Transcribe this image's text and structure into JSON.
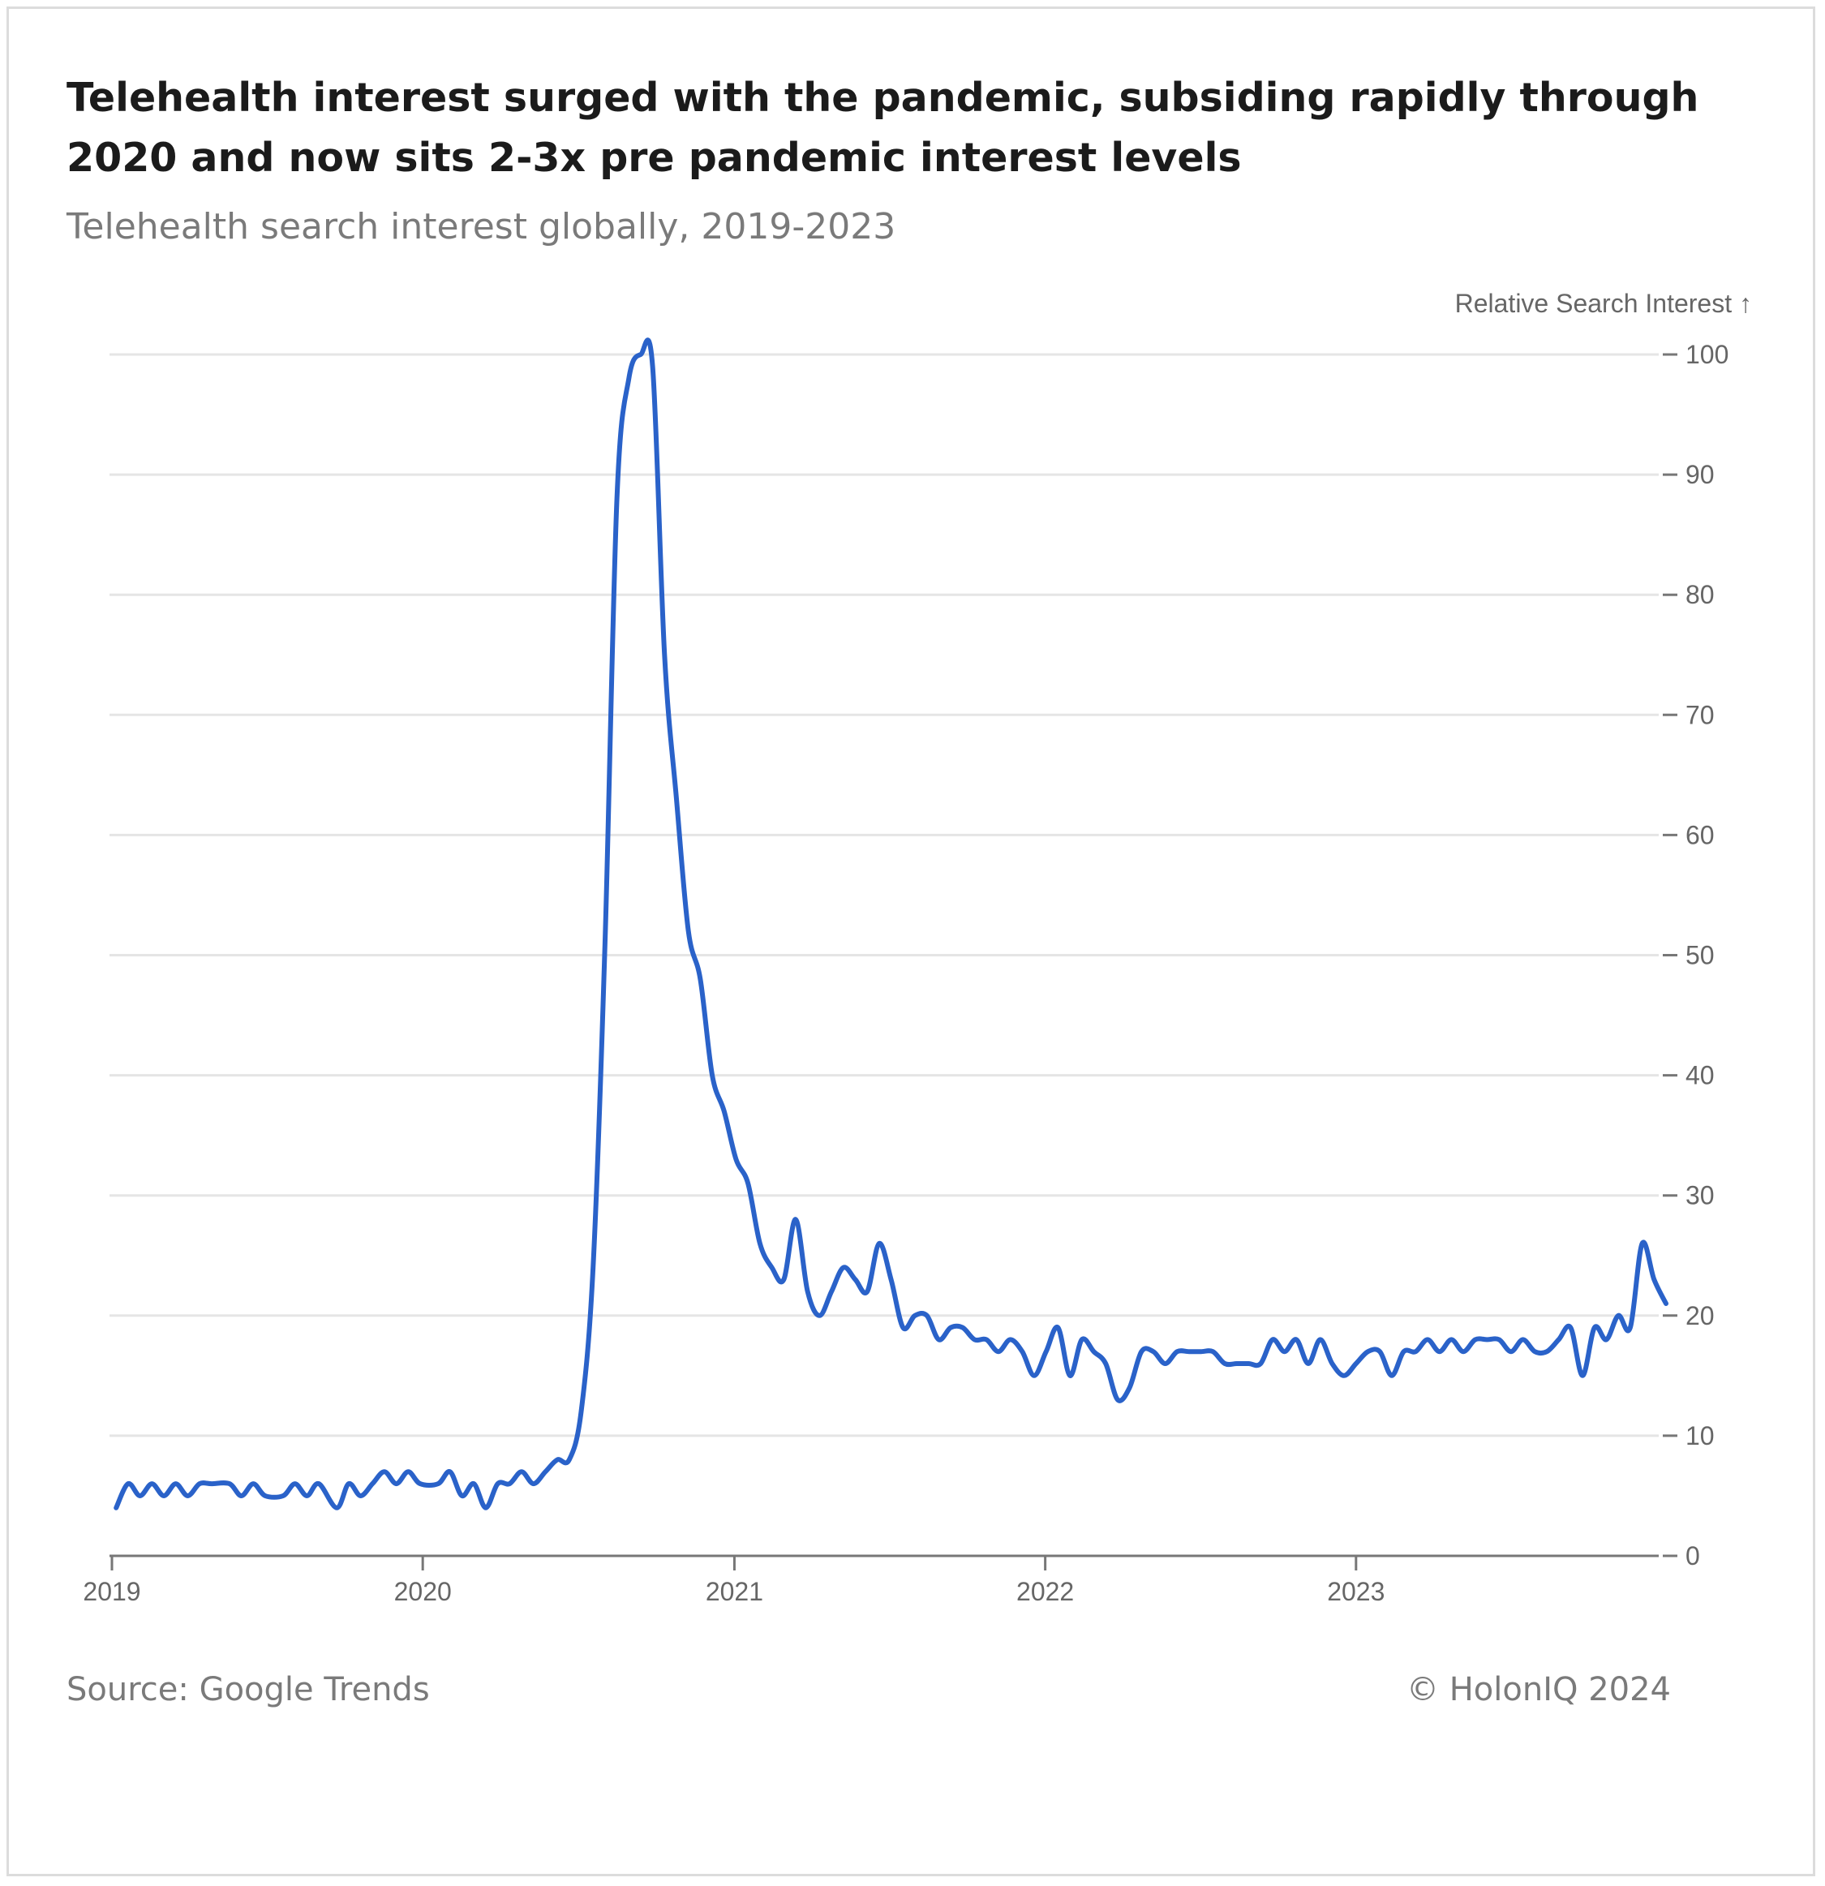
{
  "title": "Telehealth interest surged with the pandemic, subsiding rapidly through 2020 and now sits 2-3x pre pandemic interest levels",
  "subtitle": "Telehealth search interest globally, 2019-2023",
  "footer": {
    "source": "Source: Google Trends",
    "copyright": "© HolonIQ 2024"
  },
  "colors": {
    "line": "#2a62c9",
    "grid": "#e5e5e5",
    "axis_text": "#666666"
  },
  "chart_data": {
    "type": "line",
    "ylabel": "Relative Search Interest ↑",
    "xlabel": "",
    "ylim": [
      0,
      100
    ],
    "y_axis_side": "right",
    "grid": true,
    "yticks": [
      0,
      10,
      20,
      30,
      40,
      50,
      60,
      70,
      80,
      90,
      100
    ],
    "xticks": [
      {
        "label": "2019",
        "x": "2019-01-01"
      },
      {
        "label": "2020",
        "x": "2020-01-01"
      },
      {
        "label": "2021",
        "x": "2021-01-01"
      },
      {
        "label": "2022",
        "x": "2022-01-01"
      },
      {
        "label": "2023",
        "x": "2023-01-01"
      }
    ],
    "series": [
      {
        "points": [
          [
            "2019-01-06",
            4
          ],
          [
            "2019-01-20",
            6
          ],
          [
            "2019-02-03",
            5
          ],
          [
            "2019-02-17",
            6
          ],
          [
            "2019-03-03",
            5
          ],
          [
            "2019-03-17",
            6
          ],
          [
            "2019-03-31",
            5
          ],
          [
            "2019-04-14",
            6
          ],
          [
            "2019-04-28",
            6
          ],
          [
            "2019-05-19",
            6
          ],
          [
            "2019-06-02",
            5
          ],
          [
            "2019-06-16",
            6
          ],
          [
            "2019-06-30",
            5
          ],
          [
            "2019-07-21",
            5
          ],
          [
            "2019-08-04",
            6
          ],
          [
            "2019-08-18",
            5
          ],
          [
            "2019-09-01",
            6
          ],
          [
            "2019-09-22",
            4
          ],
          [
            "2019-10-06",
            6
          ],
          [
            "2019-10-20",
            5
          ],
          [
            "2019-11-03",
            6
          ],
          [
            "2019-11-17",
            7
          ],
          [
            "2019-12-01",
            6
          ],
          [
            "2019-12-15",
            7
          ],
          [
            "2019-12-29",
            6
          ],
          [
            "2020-01-19",
            6
          ],
          [
            "2020-02-02",
            7
          ],
          [
            "2020-02-16",
            5
          ],
          [
            "2020-03-01",
            6
          ],
          [
            "2020-03-15",
            4
          ],
          [
            "2020-03-29",
            6
          ],
          [
            "2020-04-12",
            6
          ],
          [
            "2020-04-26",
            7
          ],
          [
            "2020-05-10",
            6
          ],
          [
            "2020-05-24",
            7
          ],
          [
            "2020-06-07",
            8
          ],
          [
            "2020-06-21",
            8
          ],
          [
            "2020-07-05",
            12
          ],
          [
            "2020-07-19",
            24
          ],
          [
            "2020-08-02",
            51
          ],
          [
            "2020-08-16",
            88
          ],
          [
            "2020-08-30",
            98
          ],
          [
            "2020-09-13",
            100
          ],
          [
            "2020-09-27",
            99
          ],
          [
            "2020-10-11",
            75
          ],
          [
            "2020-10-25",
            63
          ],
          [
            "2020-11-08",
            52
          ],
          [
            "2020-11-22",
            48
          ],
          [
            "2020-12-06",
            40
          ],
          [
            "2020-12-20",
            37
          ],
          [
            "2021-01-03",
            33
          ],
          [
            "2021-01-17",
            31
          ],
          [
            "2021-01-31",
            26
          ],
          [
            "2021-02-14",
            24
          ],
          [
            "2021-02-28",
            23
          ],
          [
            "2021-03-14",
            28
          ],
          [
            "2021-03-28",
            22
          ],
          [
            "2021-04-11",
            20
          ],
          [
            "2021-04-25",
            22
          ],
          [
            "2021-05-09",
            24
          ],
          [
            "2021-05-23",
            23
          ],
          [
            "2021-06-06",
            22
          ],
          [
            "2021-06-20",
            26
          ],
          [
            "2021-07-04",
            23
          ],
          [
            "2021-07-18",
            19
          ],
          [
            "2021-08-01",
            20
          ],
          [
            "2021-08-15",
            20
          ],
          [
            "2021-08-29",
            18
          ],
          [
            "2021-09-12",
            19
          ],
          [
            "2021-09-26",
            19
          ],
          [
            "2021-10-10",
            18
          ],
          [
            "2021-10-24",
            18
          ],
          [
            "2021-11-07",
            17
          ],
          [
            "2021-11-21",
            18
          ],
          [
            "2021-12-05",
            17
          ],
          [
            "2021-12-19",
            15
          ],
          [
            "2022-01-02",
            17
          ],
          [
            "2022-01-16",
            19
          ],
          [
            "2022-01-30",
            15
          ],
          [
            "2022-02-13",
            18
          ],
          [
            "2022-02-27",
            17
          ],
          [
            "2022-03-13",
            16
          ],
          [
            "2022-03-27",
            13
          ],
          [
            "2022-04-10",
            14
          ],
          [
            "2022-04-24",
            17
          ],
          [
            "2022-05-08",
            17
          ],
          [
            "2022-05-22",
            16
          ],
          [
            "2022-06-05",
            17
          ],
          [
            "2022-06-19",
            17
          ],
          [
            "2022-07-03",
            17
          ],
          [
            "2022-07-17",
            17
          ],
          [
            "2022-07-31",
            16
          ],
          [
            "2022-08-14",
            16
          ],
          [
            "2022-08-28",
            16
          ],
          [
            "2022-09-11",
            16
          ],
          [
            "2022-09-25",
            18
          ],
          [
            "2022-10-09",
            17
          ],
          [
            "2022-10-23",
            18
          ],
          [
            "2022-11-06",
            16
          ],
          [
            "2022-11-20",
            18
          ],
          [
            "2022-12-04",
            16
          ],
          [
            "2022-12-18",
            15
          ],
          [
            "2023-01-01",
            16
          ],
          [
            "2023-01-15",
            17
          ],
          [
            "2023-01-29",
            17
          ],
          [
            "2023-02-12",
            15
          ],
          [
            "2023-02-26",
            17
          ],
          [
            "2023-03-12",
            17
          ],
          [
            "2023-03-26",
            18
          ],
          [
            "2023-04-09",
            17
          ],
          [
            "2023-04-23",
            18
          ],
          [
            "2023-05-07",
            17
          ],
          [
            "2023-05-21",
            18
          ],
          [
            "2023-06-04",
            18
          ],
          [
            "2023-06-18",
            18
          ],
          [
            "2023-07-02",
            17
          ],
          [
            "2023-07-16",
            18
          ],
          [
            "2023-07-30",
            17
          ],
          [
            "2023-08-13",
            17
          ],
          [
            "2023-08-27",
            18
          ],
          [
            "2023-09-10",
            19
          ],
          [
            "2023-09-24",
            15
          ],
          [
            "2023-10-08",
            19
          ],
          [
            "2023-10-22",
            18
          ],
          [
            "2023-11-05",
            20
          ],
          [
            "2023-11-19",
            19
          ],
          [
            "2023-12-03",
            26
          ],
          [
            "2023-12-17",
            23
          ],
          [
            "2023-12-31",
            21
          ]
        ]
      }
    ]
  }
}
